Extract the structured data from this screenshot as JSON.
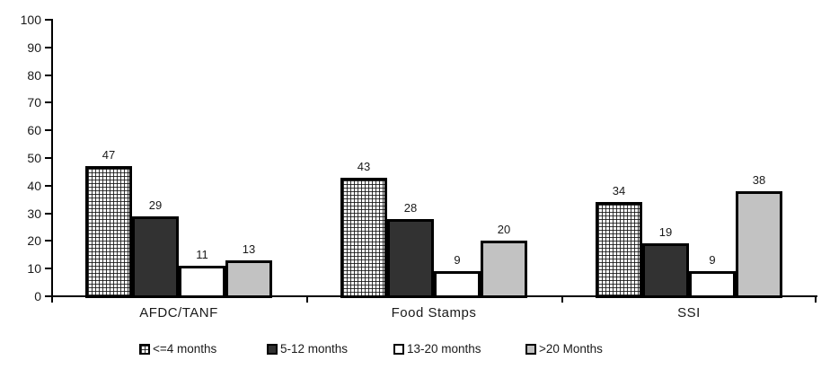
{
  "chart_data": {
    "type": "bar",
    "title": "",
    "xlabel": "",
    "ylabel": "",
    "categories": [
      "AFDC/TANF",
      "Food Stamps",
      "SSI"
    ],
    "series": [
      {
        "name": "<=4 months",
        "values": [
          47,
          43,
          34
        ],
        "fill": "crosshatch",
        "color": "#ffffff"
      },
      {
        "name": "5-12 months",
        "values": [
          29,
          28,
          19
        ],
        "fill": "solid",
        "color": "#323232"
      },
      {
        "name": "13-20 months",
        "values": [
          11,
          9,
          9
        ],
        "fill": "solid",
        "color": "#ffffff"
      },
      {
        "name": ">20 Months",
        "values": [
          13,
          20,
          38
        ],
        "fill": "solid",
        "color": "#c2c2c2"
      }
    ],
    "ylim": [
      0,
      100
    ],
    "yticks": [
      0,
      10,
      20,
      30,
      40,
      50,
      60,
      70,
      80,
      90,
      100
    ],
    "grid": false,
    "legend_position": "bottom",
    "bar_border_color": "#000000",
    "axis_color": "#000000"
  }
}
